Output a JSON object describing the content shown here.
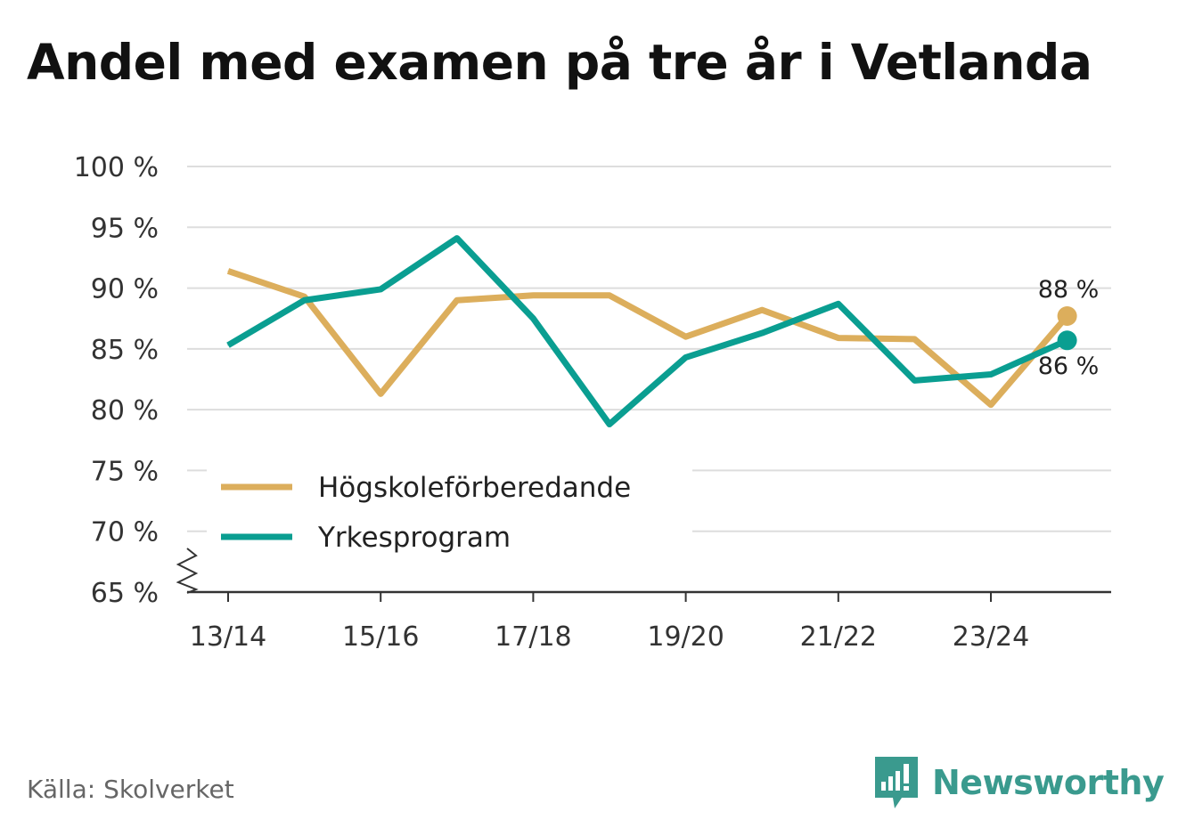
{
  "colors": {
    "series1": "#dcae5c",
    "series2": "#0a9e91",
    "grid": "#dddddd",
    "axis": "#333333",
    "brand": "#3a9a8e"
  },
  "footer": {
    "source": "Källa: Skolverket",
    "brand": "Newsworthy"
  },
  "chart_data": {
    "type": "line",
    "title": "Andel med examen på tre år i Vetlanda",
    "xlabel": "",
    "ylabel": "",
    "x": [
      "13/14",
      "14/15",
      "15/16",
      "16/17",
      "17/18",
      "18/19",
      "19/20",
      "20/21",
      "21/22",
      "22/23",
      "23/24",
      "24/25"
    ],
    "x_tick_labels": [
      "13/14",
      "15/16",
      "17/18",
      "19/20",
      "21/22",
      "23/24"
    ],
    "y_ticks": [
      65,
      70,
      75,
      80,
      85,
      90,
      95,
      100
    ],
    "y_tick_labels": [
      "65 %",
      "70 %",
      "75 %",
      "80 %",
      "85 %",
      "90 %",
      "95 %",
      "100 %"
    ],
    "ylim": [
      65,
      100
    ],
    "series": [
      {
        "name": "Högskoleförberedande",
        "values": [
          91.4,
          89.3,
          81.3,
          89.0,
          89.4,
          89.4,
          86.0,
          88.2,
          85.9,
          85.8,
          80.4,
          87.7
        ],
        "end_label": "88 %"
      },
      {
        "name": "Yrkesprogram",
        "values": [
          85.3,
          89.0,
          89.9,
          94.1,
          87.5,
          78.8,
          84.3,
          86.3,
          88.7,
          82.4,
          82.9,
          85.7
        ],
        "end_label": "86 %"
      }
    ],
    "grid": true,
    "legend": "bottom-left"
  }
}
